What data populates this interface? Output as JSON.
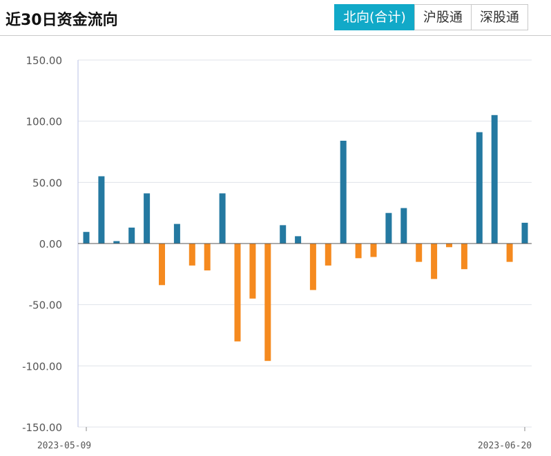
{
  "header": {
    "title": "近30日资金流向",
    "tabs": [
      {
        "label": "北向(合计)",
        "active": true
      },
      {
        "label": "沪股通",
        "active": false
      },
      {
        "label": "深股通",
        "active": false
      }
    ]
  },
  "colors": {
    "positive": "#2479a1",
    "negative": "#f58a1f",
    "tab_active": "#11a9c8",
    "grid": "#dfe3ea",
    "axis": "#b9c1e6"
  },
  "chart_data": {
    "type": "bar",
    "title": "",
    "xlabel": "",
    "ylabel": "",
    "ylim": [
      -150,
      150
    ],
    "yticks": [
      150,
      100,
      50,
      0,
      -50,
      -100,
      -150
    ],
    "ytick_labels": [
      "150.00",
      "100.00",
      "50.00",
      "0.00",
      "-50.00",
      "-100.00",
      "-150.00"
    ],
    "x_labels": {
      "first": "2023-05-09",
      "last": "2023-06-20"
    },
    "values": [
      9.5,
      55,
      2,
      13,
      41,
      -34,
      16,
      -18,
      -22,
      41,
      -80,
      -45,
      -96,
      15,
      6,
      -38,
      -18,
      84,
      -12,
      -11,
      25,
      29,
      -15,
      -29,
      -3,
      -21,
      91,
      105,
      -15,
      17
    ]
  }
}
